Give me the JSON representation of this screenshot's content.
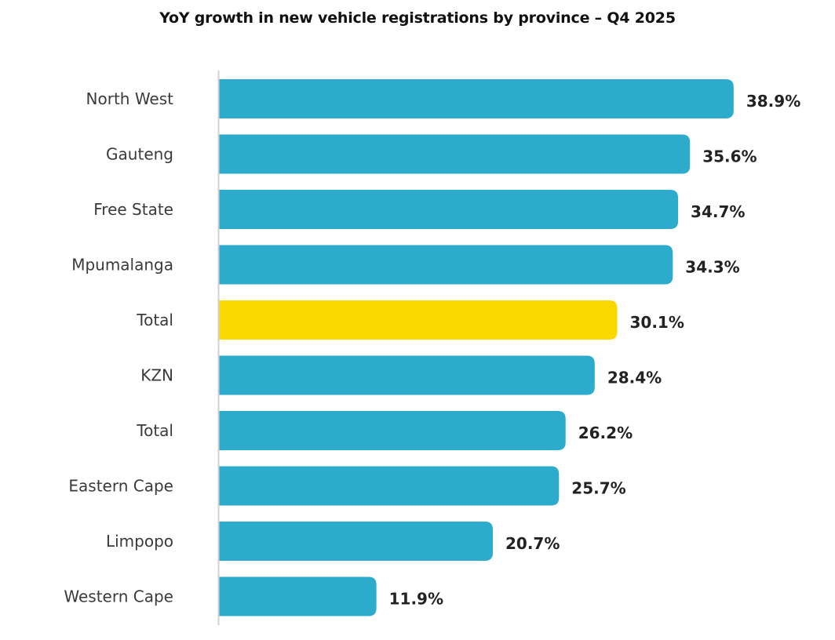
{
  "chart_data": {
    "type": "bar",
    "orientation": "horizontal",
    "title": "YoY growth in new vehicle registrations by province – Q4 2025",
    "xlabel": "",
    "ylabel": "",
    "xlim": [
      0,
      40
    ],
    "grid": false,
    "legend": "none",
    "value_suffix": "%",
    "categories": [
      "North West",
      "Gauteng",
      "Free State",
      "Mpumalanga",
      "Total",
      "KZN",
      "Total",
      "Eastern Cape",
      "Limpopo",
      "Western Cape"
    ],
    "values": [
      38.9,
      35.6,
      34.7,
      34.3,
      30.1,
      28.4,
      26.2,
      25.7,
      20.7,
      11.9
    ],
    "value_labels": [
      "38.9%",
      "35.6%",
      "34.7%",
      "34.3%",
      "30.1%",
      "28.4%",
      "26.2%",
      "25.7%",
      "20.7%",
      "11.9%"
    ],
    "highlight_index": 4,
    "colors": {
      "default": "#2cabcd",
      "highlight": "#f9d800",
      "axis": "#d0d0d0"
    }
  }
}
